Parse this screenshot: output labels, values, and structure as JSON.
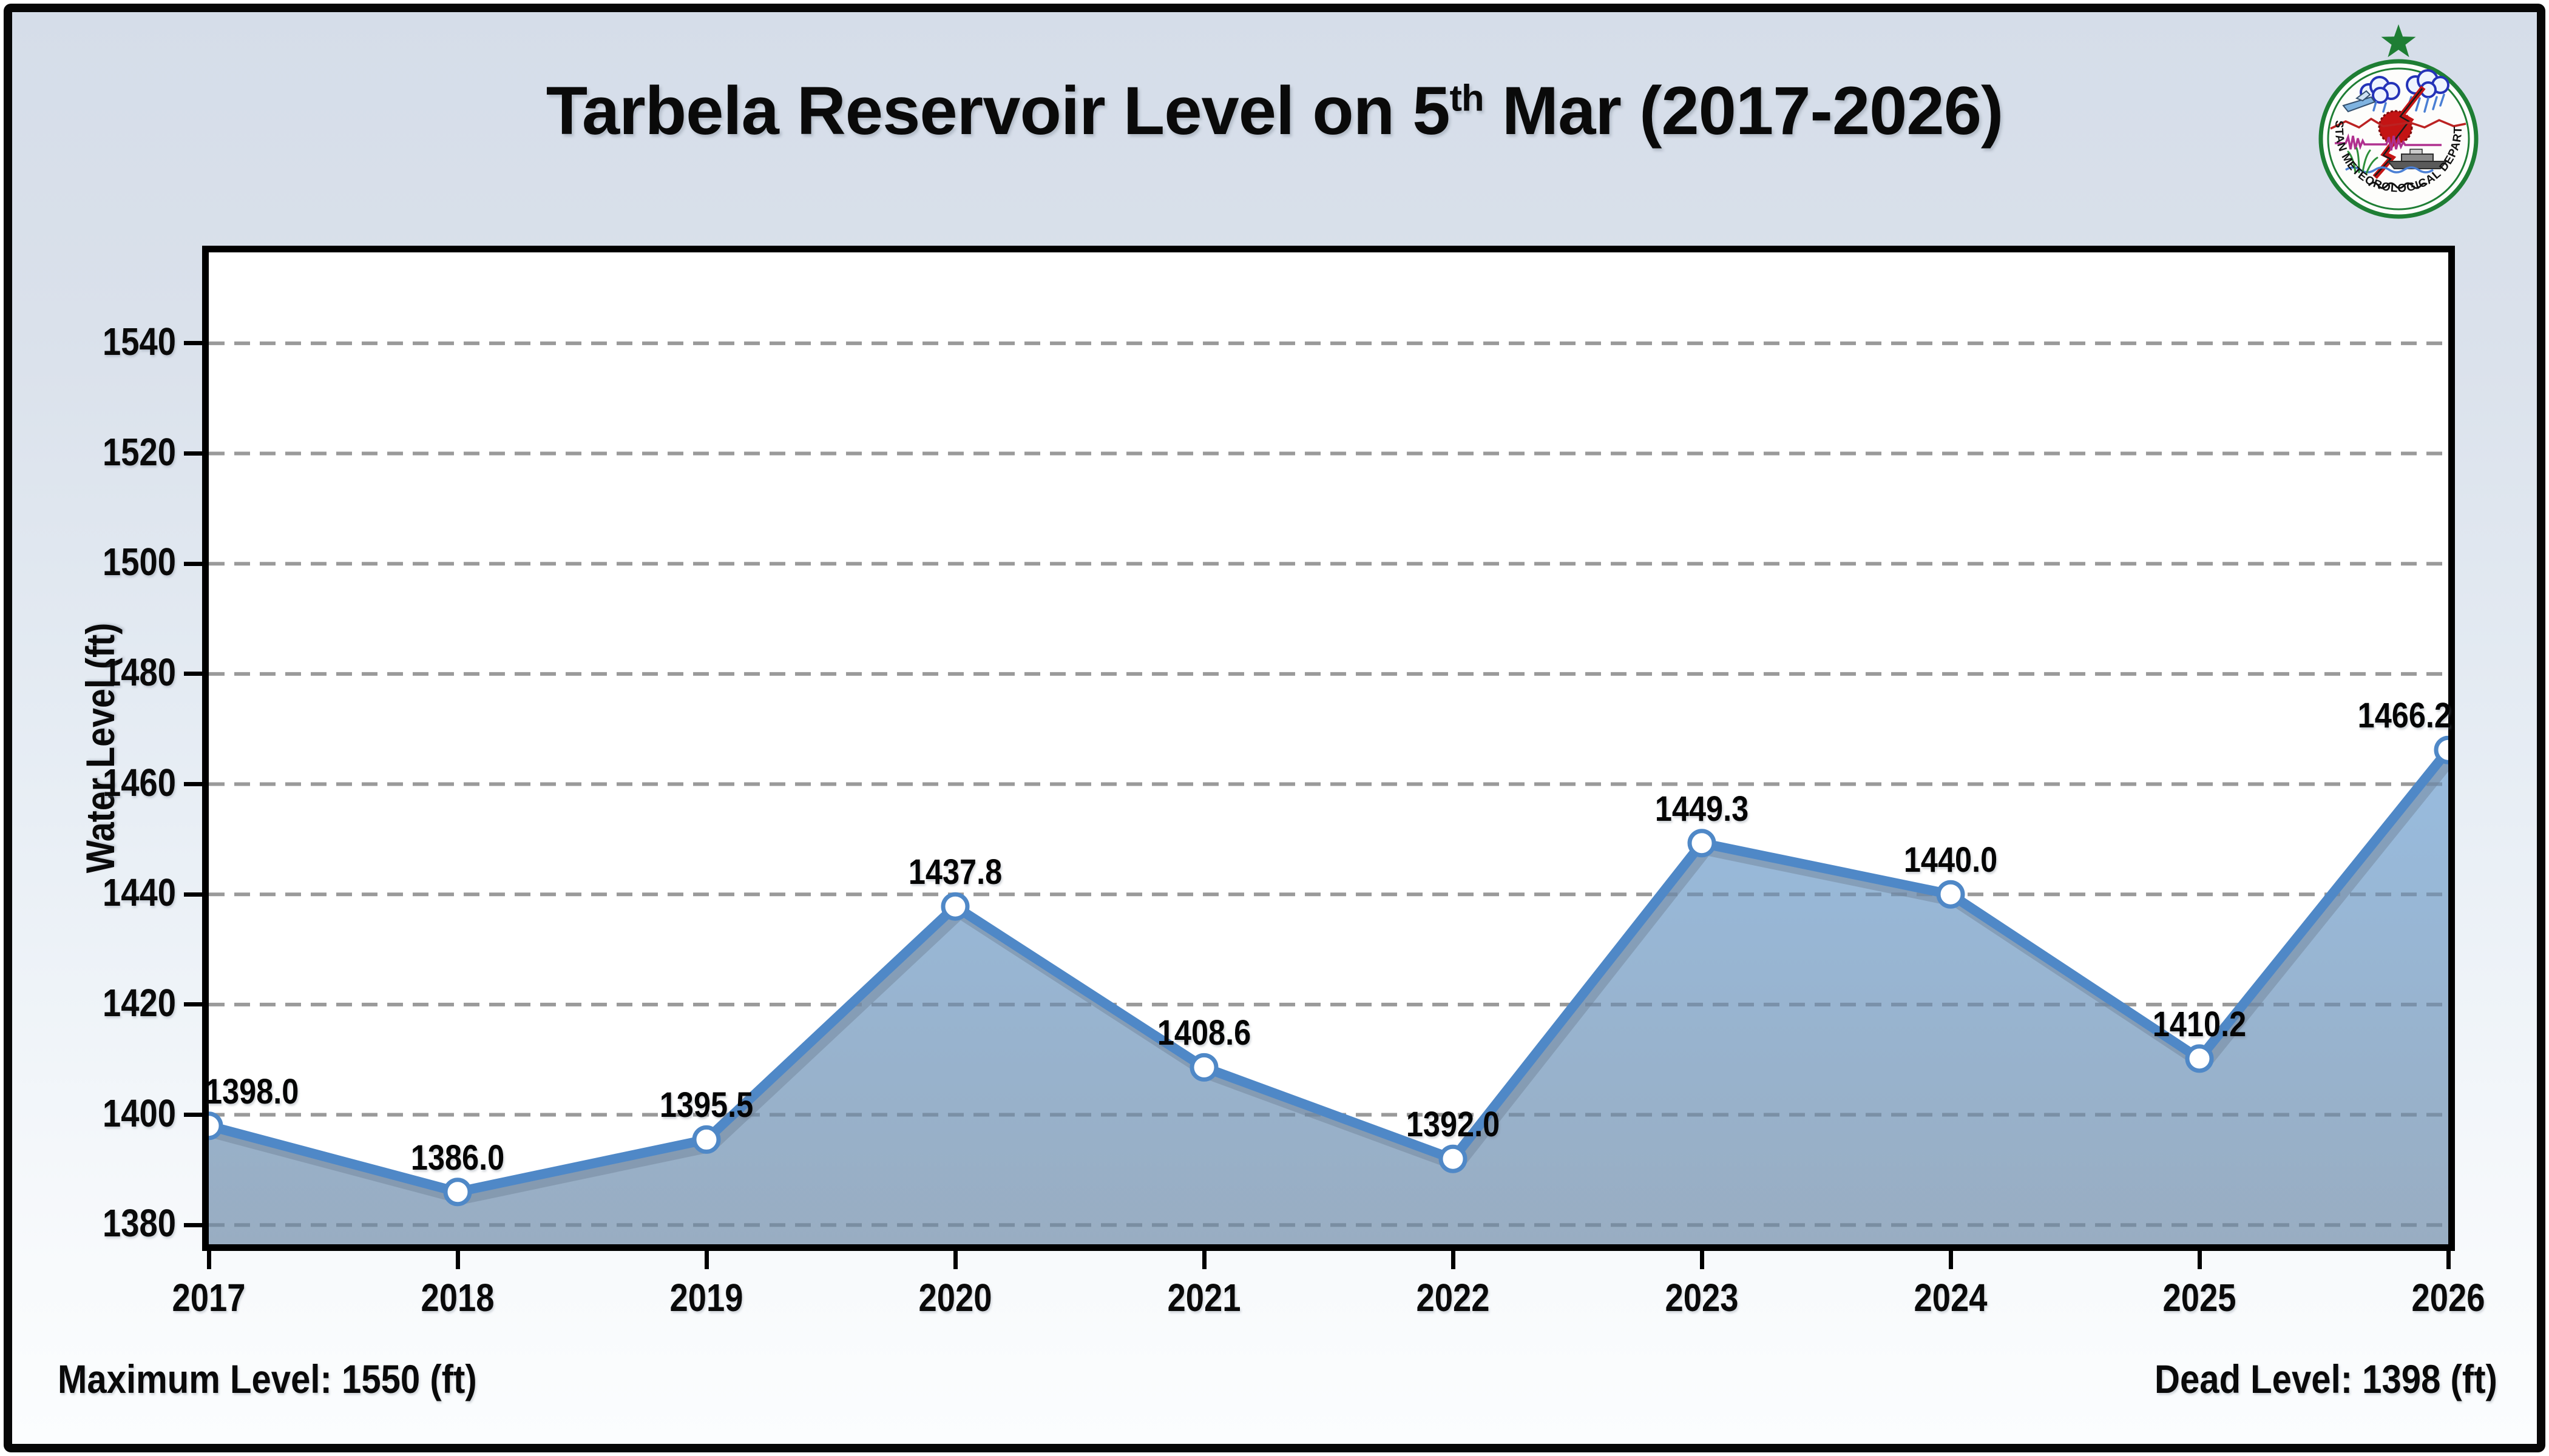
{
  "title": {
    "prefix": "Tarbela Reservoir Level on 5",
    "superscript": "th",
    "suffix": " Mar (2017-2026)"
  },
  "logo": {
    "text": "PAKISTAN METEOROLOGICAL DEPARTMENT",
    "star_color": "#1e7e34",
    "ring_color": "#1e7e34"
  },
  "footer": {
    "left": "Maximum Level: 1550 (ft)",
    "right": "Dead Level: 1398 (ft)"
  },
  "chart_data": {
    "type": "area",
    "title": "Tarbela Reservoir Level on 5th Mar (2017-2026)",
    "x": [
      "2017",
      "2018",
      "2019",
      "2020",
      "2021",
      "2022",
      "2023",
      "2024",
      "2025",
      "2026"
    ],
    "values": [
      1398.0,
      1386.0,
      1395.5,
      1437.8,
      1408.6,
      1392.0,
      1449.3,
      1440.0,
      1410.2,
      1466.2
    ],
    "point_labels": [
      "1398.0",
      "1386.0",
      "1395.5",
      "1437.8",
      "1408.6",
      "1392.0",
      "1449.3",
      "1440.0",
      "1410.2",
      "1466.2"
    ],
    "xlabel": "",
    "ylabel": "Water Level (ft)",
    "yticks": [
      1380,
      1400,
      1420,
      1440,
      1460,
      1480,
      1500,
      1520,
      1540
    ],
    "ylim": [
      1376.5,
      1556.5
    ],
    "grid": "horizontal-dashed",
    "legend": "none",
    "line_color": "#4f88c7",
    "line_shadow_color": "#72859b",
    "area_top_color": "#8fb6dc",
    "area_bottom_color": "#90a6bd",
    "marker": "white-circle",
    "gridline_color": "#9a9a9a",
    "annotations": {
      "maximum_level_ft": "1550",
      "dead_level_ft": "1398"
    }
  }
}
